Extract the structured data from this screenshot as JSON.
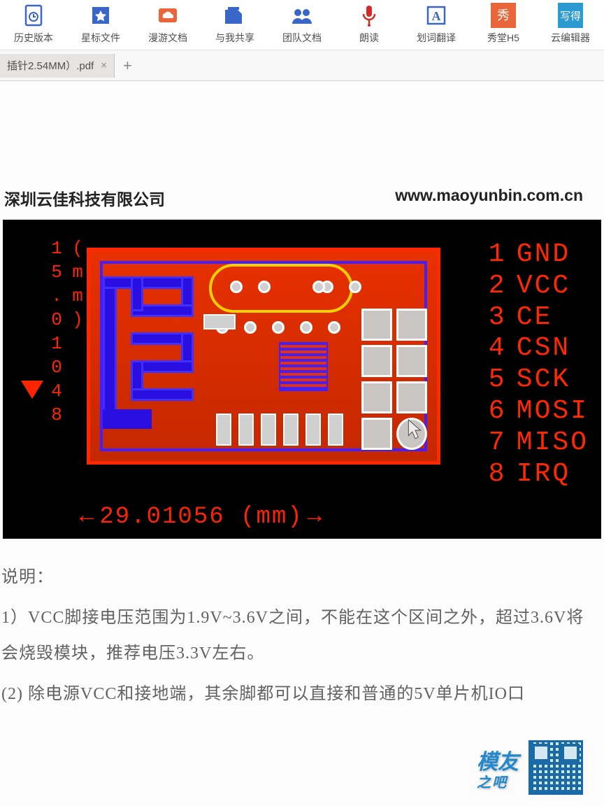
{
  "toolbar": [
    {
      "label": "历史版本",
      "icon": "history",
      "color": "#3a66c8"
    },
    {
      "label": "星标文件",
      "icon": "star",
      "color": "#3a66c8"
    },
    {
      "label": "漫游文档",
      "icon": "cloud",
      "color": "#e8663a"
    },
    {
      "label": "与我共享",
      "icon": "share",
      "color": "#3a66c8",
      "top": true
    },
    {
      "label": "团队文档",
      "icon": "team",
      "color": "#3a66c8",
      "top": true
    },
    {
      "label": "朗读",
      "icon": "mic",
      "color": "#d02a2a"
    },
    {
      "label": "划词翻译",
      "icon": "letter",
      "color": "#3a66c8"
    },
    {
      "label": "秀堂H5",
      "icon": "xiu",
      "color": "#e8663a",
      "bg": true
    },
    {
      "label": "云编辑器",
      "icon": "xie",
      "color": "#2a9ad0",
      "bg": true
    }
  ],
  "tab": {
    "name": "插针2.54MM）.pdf"
  },
  "doc": {
    "company": "深圳云佳科技有限公司",
    "url": "www.maoyunbin.com.cn",
    "dim_v": "15.01048 (mm)",
    "dim_h": "29.01056 (mm)",
    "pins": [
      {
        "n": "1",
        "name": "GND"
      },
      {
        "n": "2",
        "name": "VCC"
      },
      {
        "n": "3",
        "name": "CE"
      },
      {
        "n": "4",
        "name": "CSN"
      },
      {
        "n": "5",
        "name": "SCK"
      },
      {
        "n": "6",
        "name": "MOSI"
      },
      {
        "n": "7",
        "name": "MISO"
      },
      {
        "n": "8",
        "name": "IRQ"
      }
    ],
    "note_title": "说明：",
    "note1": "1）VCC脚接电压范围为1.9V~3.6V之间，不能在这个区间之外，超过3.6V将会烧毁模块，推荐电压3.3V左右。",
    "note2": "(2) 除电源VCC和接地端，其余脚都可以直接和普通的5V单片机IO口"
  },
  "watermark": {
    "line1": "模友",
    "line2": "之吧"
  }
}
